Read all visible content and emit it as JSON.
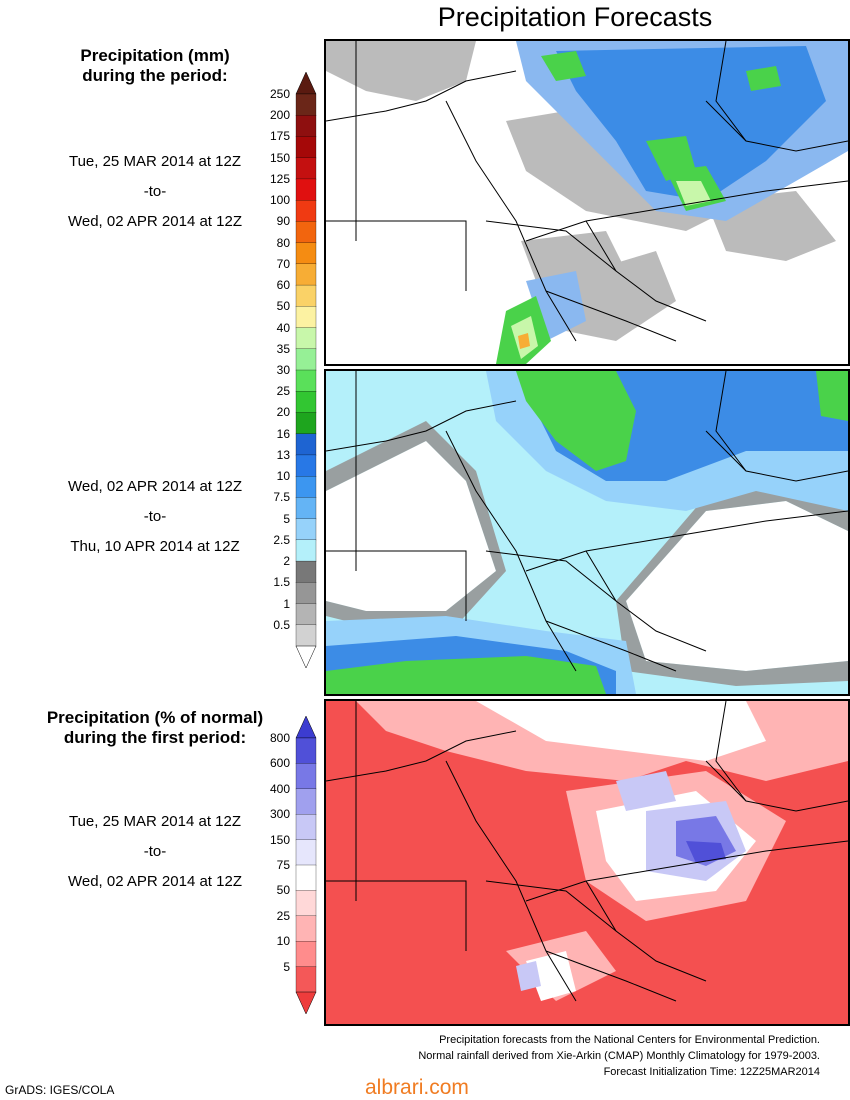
{
  "title": "Precipitation Forecasts",
  "panel1": {
    "heading_line1": "Precipitation (mm)",
    "heading_line2": "during the period:",
    "start": "Tue, 25 MAR 2014 at 12Z",
    "sep": "-to-",
    "end": "Wed, 02 APR 2014 at 12Z"
  },
  "panel2": {
    "start": "Wed, 02 APR 2014 at 12Z",
    "sep": "-to-",
    "end": "Thu, 10 APR 2014 at 12Z"
  },
  "panel3": {
    "heading_line1": "Precipitation (% of normal)",
    "heading_line2": "during the first period:",
    "start": "Tue, 25 MAR 2014 at 12Z",
    "sep": "-to-",
    "end": "Wed, 02 APR 2014 at 12Z"
  },
  "mm_colorbar": {
    "ticks": [
      "250",
      "200",
      "175",
      "150",
      "125",
      "100",
      "90",
      "80",
      "70",
      "60",
      "50",
      "40",
      "35",
      "30",
      "25",
      "20",
      "16",
      "13",
      "10",
      "7.5",
      "5",
      "2.5",
      "2",
      "1.5",
      "1",
      "0.5"
    ],
    "colors": [
      "#6b2618",
      "#8e0f0f",
      "#a50808",
      "#c41010",
      "#e01010",
      "#f03a12",
      "#f2650e",
      "#f58c12",
      "#f7ad35",
      "#fad267",
      "#fcf2a2",
      "#c8f7aa",
      "#96f096",
      "#5ae05a",
      "#32c632",
      "#1ea51e",
      "#1e64d2",
      "#2878e6",
      "#3c96f0",
      "#64b4f5",
      "#96d2fa",
      "#b4f0fa",
      "#787878",
      "#969696",
      "#b4b4b4",
      "#d2d2d2"
    ],
    "top_arrow_color": "#5a1a10",
    "bottom_arrow_color": "#ffffff"
  },
  "pct_colorbar": {
    "ticks": [
      "800",
      "600",
      "400",
      "300",
      "150",
      "75",
      "50",
      "25",
      "10",
      "5"
    ],
    "colors": [
      "#5050d8",
      "#7878e6",
      "#a0a0ee",
      "#c8c8f6",
      "#e6e6fc",
      "#ffffff",
      "#ffd8d8",
      "#ffb4b4",
      "#ff8c8c",
      "#f45858"
    ],
    "top_arrow_color": "#3c3cd0",
    "bottom_arrow_color": "#ee3c3c"
  },
  "footer": {
    "line1": "Precipitation forecasts from the National Centers for Environmental Prediction.",
    "line2": "Normal rainfall derived from Xie-Arkin (CMAP) Monthly Climatology for 1979-2003.",
    "line3": "Forecast Initialization Time: 12Z25MAR2014"
  },
  "grads_credit": "GrADS: IGES/COLA",
  "watermark": "albrari.com"
}
